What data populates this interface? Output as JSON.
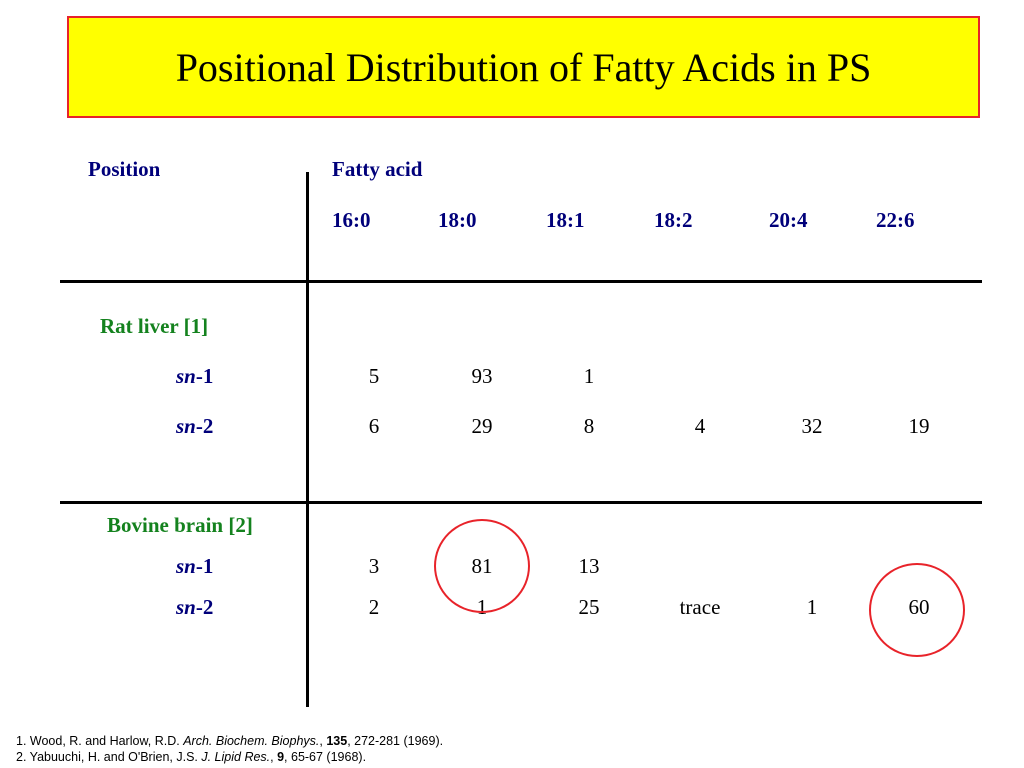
{
  "title": "Positional Distribution of Fatty Acids in PS",
  "headers": {
    "position": "Position",
    "fatty_acid": "Fatty acid",
    "columns": [
      "16:0",
      "18:0",
      "18:1",
      "18:2",
      "20:4",
      "22:6"
    ]
  },
  "groups": [
    {
      "name": "Rat liver [1]",
      "rows": [
        {
          "prefix": "sn",
          "suffix": "-1",
          "values": [
            "5",
            "93",
            "1",
            "",
            "",
            ""
          ]
        },
        {
          "prefix": "sn",
          "suffix": "-2",
          "values": [
            "6",
            "29",
            "8",
            "4",
            "32",
            "19"
          ]
        }
      ]
    },
    {
      "name": "Bovine brain [2]",
      "rows": [
        {
          "prefix": "sn",
          "suffix": "-1",
          "values": [
            "3",
            "81",
            "13",
            "",
            "",
            ""
          ]
        },
        {
          "prefix": "sn",
          "suffix": "-2",
          "values": [
            "2",
            "1",
            "25",
            "trace",
            "1",
            "60"
          ]
        }
      ]
    }
  ],
  "references": [
    {
      "pre": "1. Wood, R. and Harlow, R.D. ",
      "journal": "Arch. Biochem. Biophys.",
      "sep": ", ",
      "volume": "135",
      "post": ", 272-281 (1969)."
    },
    {
      "pre": "2. Yabuuchi, H. and O'Brien, J.S. ",
      "journal": "J. Lipid Res.",
      "sep": ", ",
      "volume": "9",
      "post": ", 65-67 (1968)."
    }
  ],
  "colors": {
    "title_bg": "#ffff00",
    "title_border": "#e8232a",
    "header_text": "#00007a",
    "group_text": "#14821e",
    "highlight": "#e8232a"
  }
}
